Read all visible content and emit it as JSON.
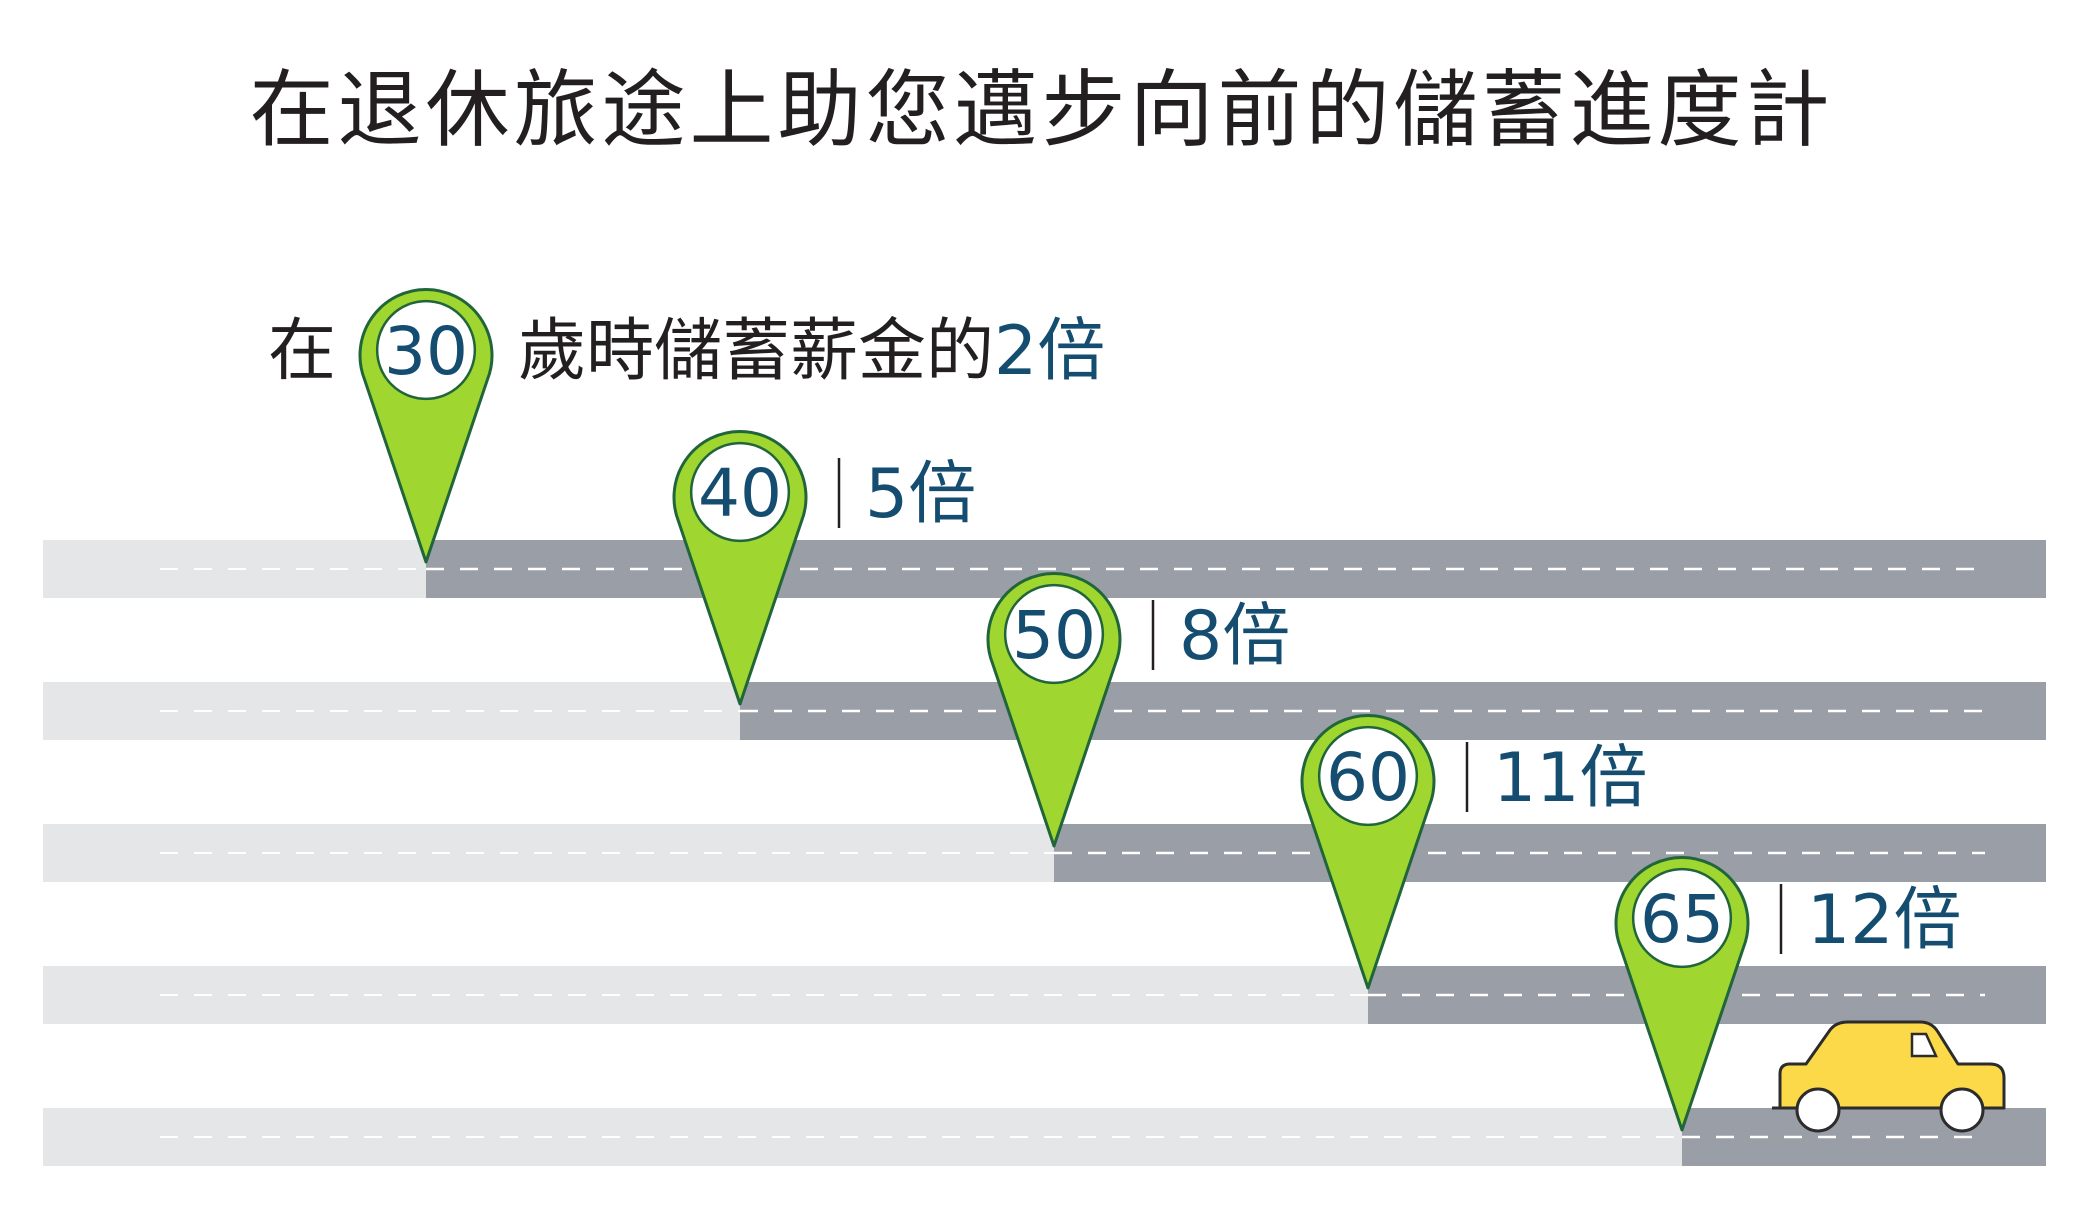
{
  "title": "在退休旅途上助您邁步向前的儲蓄進度計",
  "first_milestone": {
    "prefix": "在",
    "age": "30",
    "suffix": "歲時儲蓄薪金的",
    "multiple": "2倍"
  },
  "milestones": [
    {
      "age": "40",
      "multiple": "5倍"
    },
    {
      "age": "50",
      "multiple": "8倍"
    },
    {
      "age": "60",
      "multiple": "11倍"
    },
    {
      "age": "65",
      "multiple": "12倍"
    }
  ],
  "colors": {
    "pin_fill": "#9fd630",
    "pin_stroke": "#21653a",
    "number": "#154d71",
    "road_done": "#e4e6e8",
    "road_ahead": "#9a9ea6",
    "car": "#fcd949",
    "text": "#231f20"
  },
  "icons": [
    "location-pin-icon",
    "car-icon"
  ]
}
